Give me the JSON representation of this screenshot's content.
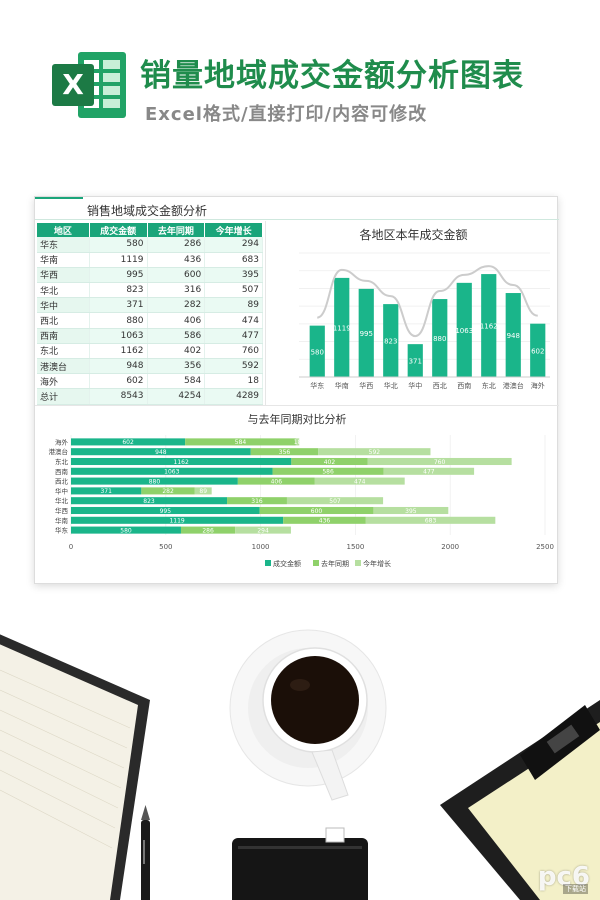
{
  "header": {
    "title": "销量地域成交金额分析图表",
    "subtitle": "Excel格式/直接打印/内容可修改",
    "logo_letter": "X"
  },
  "sheet": {
    "title": "销售地域成交金额分析",
    "columns": [
      "地区",
      "成交金额",
      "去年同期",
      "今年增长"
    ],
    "rows": [
      {
        "region": "华东",
        "amount": "580",
        "last_year": "286",
        "growth": "294"
      },
      {
        "region": "华南",
        "amount": "1119",
        "last_year": "436",
        "growth": "683"
      },
      {
        "region": "华西",
        "amount": "995",
        "last_year": "600",
        "growth": "395"
      },
      {
        "region": "华北",
        "amount": "823",
        "last_year": "316",
        "growth": "507"
      },
      {
        "region": "华中",
        "amount": "371",
        "last_year": "282",
        "growth": "89"
      },
      {
        "region": "西北",
        "amount": "880",
        "last_year": "406",
        "growth": "474"
      },
      {
        "region": "西南",
        "amount": "1063",
        "last_year": "586",
        "growth": "477"
      },
      {
        "region": "东北",
        "amount": "1162",
        "last_year": "402",
        "growth": "760"
      },
      {
        "region": "港澳台",
        "amount": "948",
        "last_year": "356",
        "growth": "592"
      },
      {
        "region": "海外",
        "amount": "602",
        "last_year": "584",
        "growth": "18"
      },
      {
        "region": "总计",
        "amount": "8543",
        "last_year": "4254",
        "growth": "4289"
      }
    ]
  },
  "colors": {
    "accent": "#1aa57a",
    "brand_green": "#1f8c4c",
    "series_amount": "#1ab58a",
    "series_last_year": "#8fd16a",
    "series_growth": "#b6dfa0",
    "trend_line": "#cccccc"
  },
  "chart_data": [
    {
      "type": "bar",
      "title": "各地区本年成交金额",
      "categories": [
        "华东",
        "华南",
        "华西",
        "华北",
        "华中",
        "西北",
        "西南",
        "东北",
        "港澳台",
        "海外"
      ],
      "values": [
        580,
        1119,
        995,
        823,
        371,
        880,
        1063,
        1162,
        948,
        602
      ],
      "ylim": [
        0,
        1400
      ],
      "grid": true,
      "trend_line": true
    },
    {
      "type": "bar",
      "orientation": "horizontal",
      "stacked": true,
      "title": "与去年同期对比分析",
      "categories": [
        "华东",
        "华南",
        "华西",
        "华北",
        "华中",
        "西北",
        "西南",
        "东北",
        "港澳台",
        "海外"
      ],
      "series": [
        {
          "name": "成交金额",
          "values": [
            580,
            1119,
            995,
            823,
            371,
            880,
            1063,
            1162,
            948,
            602
          ]
        },
        {
          "name": "去年同期",
          "values": [
            286,
            436,
            600,
            316,
            282,
            406,
            586,
            402,
            356,
            584
          ]
        },
        {
          "name": "今年增长",
          "values": [
            294,
            683,
            395,
            507,
            89,
            474,
            477,
            760,
            592,
            18
          ]
        }
      ],
      "xlim": [
        0,
        2500
      ],
      "xticks": [
        "0",
        "500",
        "1000",
        "1500",
        "2000",
        "2500"
      ],
      "legend_position": "bottom",
      "grid": true
    }
  ],
  "watermark": {
    "text": "pc6",
    "small_text": "下载站"
  }
}
